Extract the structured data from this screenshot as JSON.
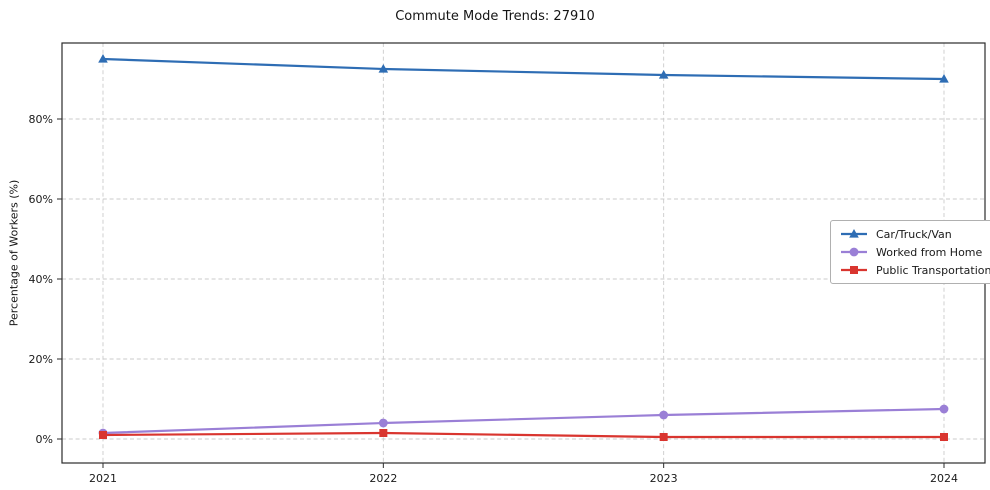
{
  "chart_data": {
    "type": "line",
    "title": "Commute Mode Trends: 27910",
    "xlabel": "",
    "ylabel": "Percentage of Workers (%)",
    "x": [
      2021,
      2022,
      2023,
      2024
    ],
    "x_tick_labels": [
      "2021",
      "2022",
      "2023",
      "2024"
    ],
    "y_ticks": [
      0,
      20,
      40,
      60,
      80
    ],
    "y_tick_labels": [
      "0%",
      "20%",
      "40%",
      "60%",
      "80%"
    ],
    "ylim": [
      -6,
      99
    ],
    "grid": true,
    "legend_position": "center right",
    "series": [
      {
        "name": "Car/Truck/Van",
        "color": "#2e6db4",
        "marker": "triangle",
        "values": [
          95,
          92.5,
          91,
          90
        ]
      },
      {
        "name": "Worked from Home",
        "color": "#9a7fd6",
        "marker": "circle",
        "values": [
          1.5,
          4,
          6,
          7.5
        ]
      },
      {
        "name": "Public Transportation",
        "color": "#d9352f",
        "marker": "square",
        "values": [
          1,
          1.5,
          0.5,
          0.5
        ]
      }
    ]
  }
}
